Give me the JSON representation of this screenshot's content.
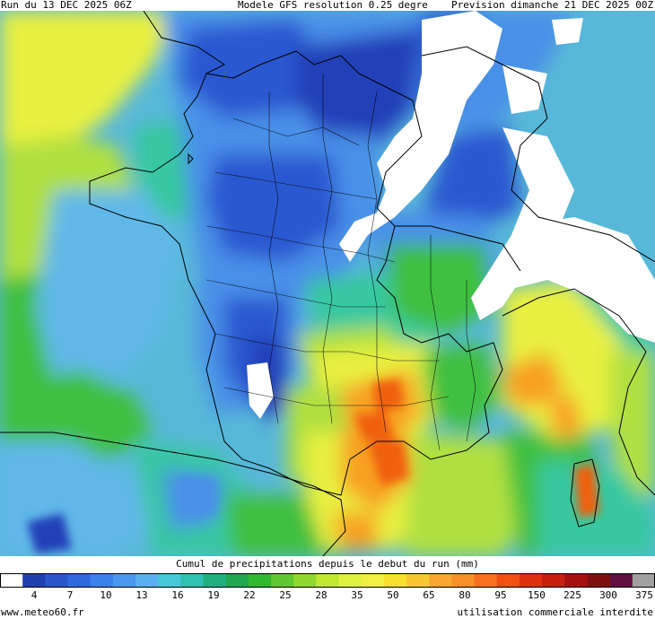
{
  "header": {
    "run": "Run du 13 DEC 2025 06Z",
    "model": "Modele GFS resolution 0.25 degre",
    "forecast": "Prevision dimanche 21 DEC 2025 00Z"
  },
  "legend": {
    "title": "Cumul de precipitations depuis le debut du run (mm)",
    "ticks": [
      "4",
      "7",
      "10",
      "13",
      "16",
      "19",
      "22",
      "25",
      "28",
      "35",
      "50",
      "65",
      "80",
      "95",
      "150",
      "225",
      "300",
      "375"
    ],
    "colors": [
      "#ffffff",
      "#2040b0",
      "#2a56cc",
      "#3068e0",
      "#3c80ec",
      "#4a98f0",
      "#58b0f0",
      "#46c8d8",
      "#30c0b0",
      "#20b080",
      "#20a850",
      "#30b830",
      "#60c830",
      "#90d830",
      "#c0e830",
      "#e0f040",
      "#f0f040",
      "#f8e030",
      "#f8c830",
      "#f8a830",
      "#f89028",
      "#f87020",
      "#f05010",
      "#e03010",
      "#c82010",
      "#a81010",
      "#801010",
      "#601040",
      "#a0a0a0"
    ]
  },
  "footer": {
    "site": "www.meteo60.fr",
    "notice": "utilisation commerciale interdite"
  },
  "map": {
    "colors": {
      "yellow": "#e8f040",
      "yellow_green": "#b0e040",
      "green": "#40c040",
      "teal": "#38c8a0",
      "cyan": "#60b8e8",
      "light_blue": "#4a90e8",
      "blue": "#2a58d0",
      "dark_blue": "#2040b8",
      "orange": "#f8a020",
      "dark_orange": "#f06010",
      "dry": "#ffffff",
      "border": "#000000"
    }
  }
}
